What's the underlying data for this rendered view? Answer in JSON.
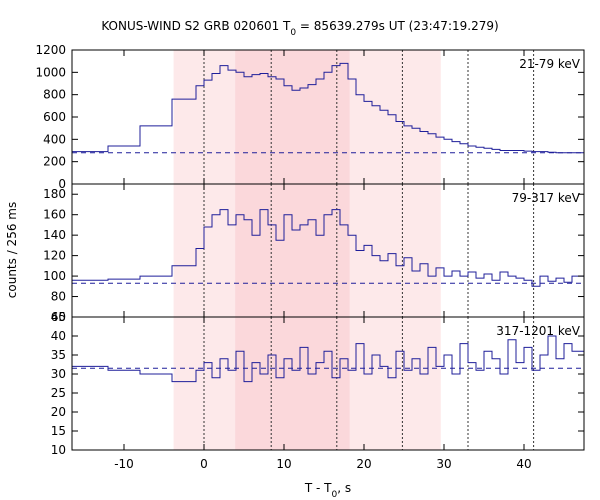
{
  "chart_data": {
    "type": "line",
    "title_main": "KONUS-WIND S2 GRB 020601 T",
    "title_sub": "0",
    "title_rest": " = 85639.279s UT (23:47:19.279)",
    "xlabel_main": "T - T",
    "xlabel_sub": "0",
    "xlabel_rest": ", s",
    "ylabel": "counts / 256 ms",
    "xlim": [
      -16.5,
      47.5
    ],
    "xticks": [
      -10,
      0,
      10,
      20,
      30,
      40
    ],
    "shaded_intervals": [
      {
        "x0": -3.8,
        "x1": 29.6,
        "color": "#fde9ea"
      },
      {
        "x0": 3.9,
        "x1": 18.2,
        "color": "#fbd8db"
      }
    ],
    "vertical_markers": [
      0,
      8.4,
      16.6,
      24.8,
      33.0,
      41.2
    ],
    "panels": [
      {
        "label": "21-79 keV",
        "ylim": [
          0,
          1200
        ],
        "yticks": [
          0,
          200,
          400,
          600,
          800,
          1000,
          1200
        ],
        "background_level": 280,
        "series": {
          "name": "",
          "x": [
            -16.5,
            -12.0,
            -8.0,
            -4.0,
            -1.0,
            0.0,
            1.0,
            2.0,
            3.0,
            4.0,
            5.0,
            6.0,
            7.0,
            8.0,
            9.0,
            10.0,
            11.0,
            12.0,
            13.0,
            14.0,
            15.0,
            16.0,
            17.0,
            18.0,
            19.0,
            20.0,
            21.0,
            22.0,
            23.0,
            24.0,
            25.0,
            26.0,
            27.0,
            28.0,
            29.0,
            30.0,
            31.0,
            32.0,
            33.0,
            34.0,
            35.0,
            36.0,
            37.0,
            38.0,
            39.0,
            40.0,
            41.0,
            42.0,
            43.0,
            44.0,
            45.0,
            46.0,
            47.5
          ],
          "y": [
            290,
            340,
            520,
            760,
            880,
            930,
            990,
            1060,
            1020,
            1000,
            960,
            980,
            990,
            960,
            940,
            880,
            840,
            860,
            890,
            940,
            1000,
            1060,
            1080,
            940,
            800,
            740,
            700,
            660,
            620,
            560,
            520,
            500,
            470,
            450,
            420,
            400,
            380,
            360,
            340,
            330,
            320,
            310,
            300,
            300,
            300,
            295,
            290,
            290,
            285,
            280,
            280,
            280,
            280
          ]
        }
      },
      {
        "label": "79-317 keV",
        "ylim": [
          60,
          190
        ],
        "yticks": [
          60,
          80,
          100,
          120,
          140,
          160,
          180
        ],
        "background_level": 93,
        "series": {
          "name": "",
          "x": [
            -16.5,
            -12.0,
            -8.0,
            -4.0,
            -1.0,
            0.0,
            1.0,
            2.0,
            3.0,
            4.0,
            5.0,
            6.0,
            7.0,
            8.0,
            9.0,
            10.0,
            11.0,
            12.0,
            13.0,
            14.0,
            15.0,
            16.0,
            17.0,
            18.0,
            19.0,
            20.0,
            21.0,
            22.0,
            23.0,
            24.0,
            25.0,
            26.0,
            27.0,
            28.0,
            29.0,
            30.0,
            31.0,
            32.0,
            33.0,
            34.0,
            35.0,
            36.0,
            37.0,
            38.0,
            39.0,
            40.0,
            41.0,
            42.0,
            43.0,
            44.0,
            45.0,
            46.0,
            47.5
          ],
          "y": [
            96,
            97,
            100,
            110,
            127,
            148,
            160,
            165,
            150,
            160,
            155,
            140,
            165,
            150,
            135,
            160,
            145,
            150,
            155,
            140,
            160,
            165,
            150,
            140,
            125,
            130,
            120,
            115,
            122,
            110,
            118,
            105,
            112,
            100,
            108,
            100,
            105,
            100,
            104,
            98,
            102,
            96,
            104,
            100,
            98,
            96,
            90,
            100,
            95,
            98,
            94,
            100,
            96
          ]
        }
      },
      {
        "label": "317-1201 keV",
        "ylim": [
          10,
          45
        ],
        "yticks": [
          10,
          15,
          20,
          25,
          30,
          35,
          40,
          45
        ],
        "background_level": 31.5,
        "series": {
          "name": "",
          "x": [
            -16.5,
            -12.0,
            -8.0,
            -4.0,
            -1.0,
            0.0,
            1.0,
            2.0,
            3.0,
            4.0,
            5.0,
            6.0,
            7.0,
            8.0,
            9.0,
            10.0,
            11.0,
            12.0,
            13.0,
            14.0,
            15.0,
            16.0,
            17.0,
            18.0,
            19.0,
            20.0,
            21.0,
            22.0,
            23.0,
            24.0,
            25.0,
            26.0,
            27.0,
            28.0,
            29.0,
            30.0,
            31.0,
            32.0,
            33.0,
            34.0,
            35.0,
            36.0,
            37.0,
            38.0,
            39.0,
            40.0,
            41.0,
            42.0,
            43.0,
            44.0,
            45.0,
            46.0,
            47.5
          ],
          "y": [
            32,
            31,
            30,
            28,
            31,
            33,
            29,
            34,
            31,
            36,
            28,
            33,
            30,
            35,
            29,
            34,
            31,
            37,
            30,
            33,
            36,
            29,
            34,
            31,
            38,
            30,
            35,
            32,
            29,
            36,
            31,
            34,
            30,
            37,
            32,
            35,
            30,
            38,
            33,
            31,
            36,
            34,
            30,
            39,
            33,
            37,
            31,
            35,
            40,
            34,
            38,
            36,
            37
          ]
        }
      }
    ]
  }
}
